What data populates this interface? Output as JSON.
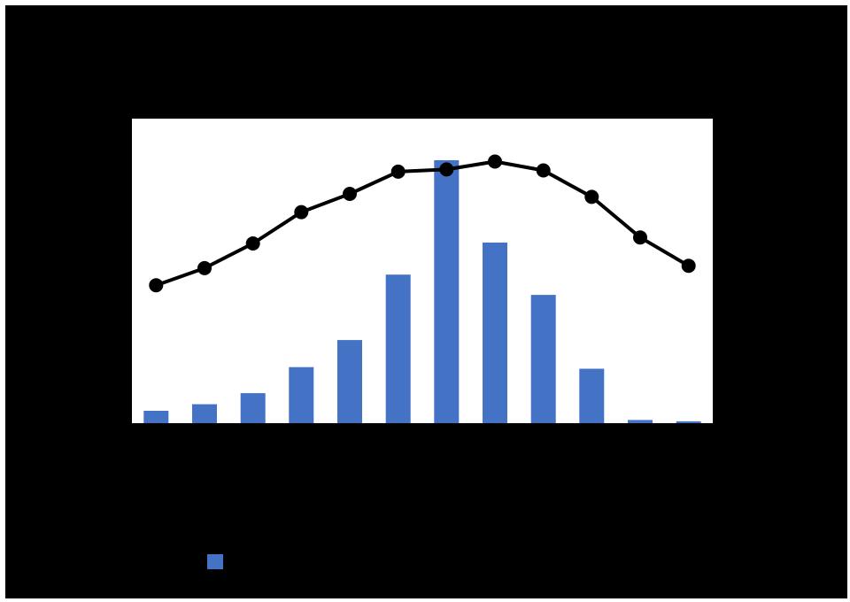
{
  "colors": {
    "background": "#000000",
    "plot_area": "#ffffff",
    "bars": "#4472c4",
    "line": "#000000"
  },
  "chart_data": {
    "type": "bar",
    "title": "",
    "xlabel": "",
    "ylabel": "",
    "y2label": "",
    "categories": [
      "",
      "",
      "",
      "",
      "",
      "",
      "",
      "",
      "",
      "",
      "",
      ""
    ],
    "ylim": [
      0,
      100
    ],
    "y2lim": [
      0,
      100
    ],
    "grid": false,
    "legend": "bottom-left",
    "series": [
      {
        "kind": "bar",
        "axis": "left",
        "color": "#4472c4",
        "values": [
          4.7,
          7.2,
          11.4,
          21.3,
          31.6,
          56.5,
          100.0,
          68.7,
          48.8,
          20.7,
          1.2,
          0.7
        ]
      },
      {
        "kind": "line",
        "axis": "right",
        "color": "#000000",
        "markers": true,
        "values": [
          45.3,
          50.9,
          59.0,
          69.3,
          75.3,
          82.6,
          83.3,
          85.9,
          83.0,
          74.3,
          61.0,
          51.7
        ]
      }
    ]
  }
}
